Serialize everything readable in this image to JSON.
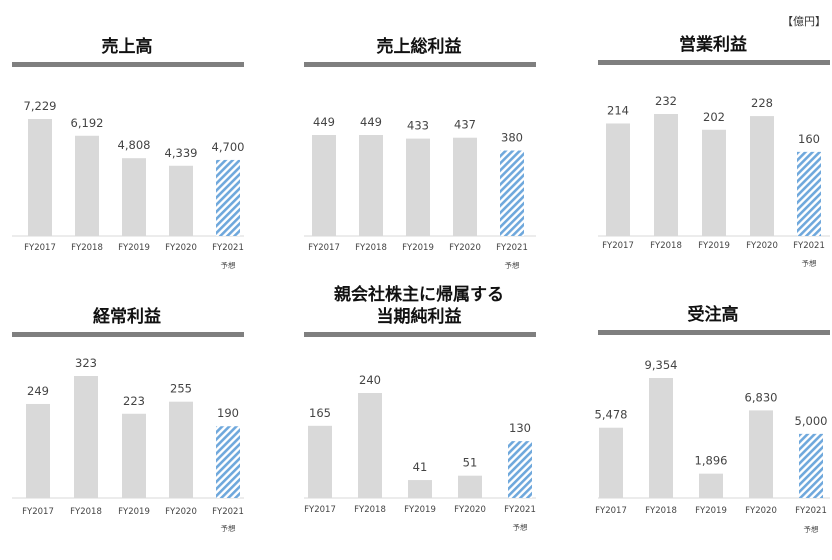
{
  "unit_label": "【億円】",
  "forecast_note": "予想",
  "colors": {
    "bar": "#d9d9d9",
    "forecast_stripe": "#6fa8dc",
    "title_rule": "#7f7f7f",
    "axis": "#d9d9d9"
  },
  "chart_data": [
    {
      "type": "bar",
      "title": "売上高",
      "categories": [
        "FY2017",
        "FY2018",
        "FY2019",
        "FY2020",
        "FY2021"
      ],
      "values": [
        7229,
        6192,
        4808,
        4339,
        4700
      ],
      "labels": [
        "7,229",
        "6,192",
        "4,808",
        "4,339",
        "4,700"
      ],
      "forecast_index": 4,
      "ylim": [
        0,
        7229
      ]
    },
    {
      "type": "bar",
      "title": "売上総利益",
      "categories": [
        "FY2017",
        "FY2018",
        "FY2019",
        "FY2020",
        "FY2021"
      ],
      "values": [
        449,
        449,
        433,
        437,
        380
      ],
      "labels": [
        "449",
        "449",
        "433",
        "437",
        "380"
      ],
      "forecast_index": 4,
      "ylim": [
        0,
        449
      ]
    },
    {
      "type": "bar",
      "title": "営業利益",
      "categories": [
        "FY2017",
        "FY2018",
        "FY2019",
        "FY2020",
        "FY2021"
      ],
      "values": [
        214,
        232,
        202,
        228,
        160
      ],
      "labels": [
        "214",
        "232",
        "202",
        "228",
        "160"
      ],
      "forecast_index": 4,
      "ylim": [
        0,
        232
      ]
    },
    {
      "type": "bar",
      "title": "経常利益",
      "categories": [
        "FY2017",
        "FY2018",
        "FY2019",
        "FY2020",
        "FY2021"
      ],
      "values": [
        249,
        323,
        223,
        255,
        190
      ],
      "labels": [
        "249",
        "323",
        "223",
        "255",
        "190"
      ],
      "forecast_index": 4,
      "ylim": [
        0,
        323
      ]
    },
    {
      "type": "bar",
      "title": "親会社株主に帰属する\n当期純利益",
      "categories": [
        "FY2017",
        "FY2018",
        "FY2019",
        "FY2020",
        "FY2021"
      ],
      "values": [
        165,
        240,
        41,
        51,
        130
      ],
      "labels": [
        "165",
        "240",
        "41",
        "51",
        "130"
      ],
      "forecast_index": 4,
      "ylim": [
        0,
        240
      ]
    },
    {
      "type": "bar",
      "title": "受注高",
      "categories": [
        "FY2017",
        "FY2018",
        "FY2019",
        "FY2020",
        "FY2021"
      ],
      "values": [
        5478,
        9354,
        1896,
        6830,
        5000
      ],
      "labels": [
        "5,478",
        "9,354",
        "1,896",
        "6,830",
        "5,000"
      ],
      "forecast_index": 4,
      "ylim": [
        0,
        9354
      ]
    }
  ]
}
